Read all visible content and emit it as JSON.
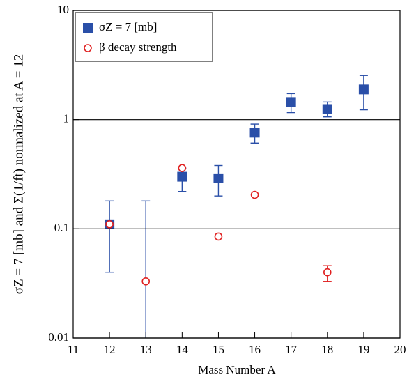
{
  "chart_data": {
    "type": "scatter",
    "xlabel": "Mass Number A",
    "ylabel": "σZ = 7 [mb]  and  Σ(1/ft) normalized at A = 12",
    "x": [
      12,
      13,
      14,
      15,
      16,
      17,
      18,
      19
    ],
    "series": [
      {
        "name": "σZ = 7 [mb]",
        "color": "#2a4fa8",
        "marker": "square",
        "values": [
          0.11,
          null,
          0.3,
          0.29,
          0.76,
          1.45,
          1.25,
          1.89
        ],
        "low": [
          0.04,
          0.005,
          0.22,
          0.2,
          0.61,
          1.16,
          1.06,
          1.23
        ],
        "high": [
          0.18,
          0.18,
          0.36,
          0.38,
          0.91,
          1.73,
          1.45,
          2.54
        ]
      },
      {
        "name": "β decay strength",
        "color": "#e02020",
        "marker": "circle",
        "values": [
          0.11,
          0.033,
          0.36,
          0.085,
          0.205,
          null,
          0.04,
          null
        ],
        "low": [
          null,
          null,
          null,
          null,
          null,
          null,
          0.033,
          null
        ],
        "high": [
          null,
          null,
          null,
          null,
          null,
          null,
          0.046,
          null
        ]
      }
    ],
    "xlim": [
      11,
      20
    ],
    "xticks": [
      11,
      12,
      13,
      14,
      15,
      16,
      17,
      18,
      19,
      20
    ],
    "ylim": [
      0.01,
      10
    ],
    "yticks": [
      0.01,
      0.1,
      1,
      10
    ],
    "log_y": true,
    "grid": true,
    "legend": "upper left"
  }
}
